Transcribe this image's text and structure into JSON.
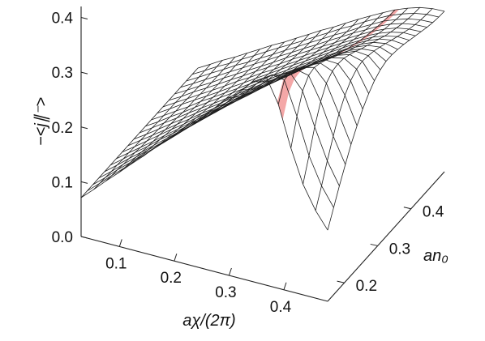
{
  "chart_data": {
    "type": "surface",
    "title": "",
    "axes": {
      "x": {
        "label": "aχ/(2π)",
        "range": [
          0.03,
          0.48
        ],
        "ticks": [
          0.1,
          0.2,
          0.3,
          0.4
        ],
        "tick_labels": [
          "0.1",
          "0.2",
          "0.3",
          "0.4"
        ]
      },
      "y": {
        "label": "an₀",
        "range": [
          0.15,
          0.5
        ],
        "ticks": [
          0.2,
          0.3,
          0.4
        ],
        "tick_labels": [
          "0.2",
          "0.3",
          "0.4"
        ]
      },
      "z": {
        "label": "−<j∥⁻>",
        "range": [
          0.0,
          0.42
        ],
        "ticks": [
          0.0,
          0.1,
          0.2,
          0.3,
          0.4
        ],
        "tick_labels": [
          "0.0",
          "0.1",
          "0.2",
          "0.3",
          "0.4"
        ]
      }
    },
    "surface": {
      "x_grid": [
        0.03,
        0.053,
        0.075,
        0.098,
        0.12,
        0.143,
        0.165,
        0.188,
        0.21,
        0.233,
        0.255,
        0.278,
        0.3,
        0.323,
        0.345,
        0.368,
        0.39,
        0.413,
        0.435,
        0.458,
        0.48
      ],
      "y_grid": [
        0.15,
        0.168,
        0.185,
        0.203,
        0.22,
        0.238,
        0.255,
        0.273,
        0.29,
        0.308,
        0.325,
        0.343,
        0.36,
        0.378,
        0.395,
        0.413,
        0.43,
        0.448,
        0.465,
        0.483,
        0.5
      ],
      "z_values": [
        [
          0.071,
          0.092,
          0.113,
          0.134,
          0.155,
          0.176,
          0.198,
          0.219,
          0.24,
          0.261,
          0.282,
          0.303,
          0.324,
          0.345,
          0.366,
          0.38,
          0.336,
          0.262,
          0.202,
          0.16,
          0.13
        ],
        [
          0.071,
          0.091,
          0.111,
          0.131,
          0.152,
          0.172,
          0.192,
          0.212,
          0.232,
          0.253,
          0.273,
          0.293,
          0.313,
          0.333,
          0.353,
          0.372,
          0.368,
          0.308,
          0.242,
          0.193,
          0.159
        ],
        [
          0.071,
          0.09,
          0.11,
          0.129,
          0.149,
          0.168,
          0.187,
          0.207,
          0.226,
          0.245,
          0.265,
          0.284,
          0.303,
          0.323,
          0.342,
          0.36,
          0.37,
          0.343,
          0.283,
          0.227,
          0.187
        ],
        [
          0.071,
          0.089,
          0.108,
          0.127,
          0.146,
          0.164,
          0.183,
          0.202,
          0.22,
          0.239,
          0.258,
          0.276,
          0.295,
          0.313,
          0.332,
          0.35,
          0.364,
          0.359,
          0.317,
          0.26,
          0.214
        ],
        [
          0.071,
          0.089,
          0.107,
          0.125,
          0.143,
          0.161,
          0.179,
          0.197,
          0.215,
          0.233,
          0.251,
          0.269,
          0.287,
          0.305,
          0.323,
          0.34,
          0.356,
          0.362,
          0.339,
          0.289,
          0.239
        ],
        [
          0.071,
          0.088,
          0.106,
          0.123,
          0.141,
          0.158,
          0.175,
          0.193,
          0.21,
          0.228,
          0.245,
          0.262,
          0.28,
          0.297,
          0.314,
          0.331,
          0.347,
          0.358,
          0.349,
          0.311,
          0.261
        ],
        [
          0.071,
          0.088,
          0.104,
          0.121,
          0.138,
          0.155,
          0.172,
          0.189,
          0.206,
          0.222,
          0.239,
          0.256,
          0.273,
          0.29,
          0.306,
          0.323,
          0.339,
          0.352,
          0.351,
          0.326,
          0.28
        ],
        [
          0.071,
          0.087,
          0.103,
          0.12,
          0.136,
          0.152,
          0.169,
          0.185,
          0.201,
          0.218,
          0.234,
          0.25,
          0.267,
          0.283,
          0.299,
          0.315,
          0.331,
          0.344,
          0.349,
          0.335,
          0.296
        ],
        [
          0.071,
          0.087,
          0.102,
          0.118,
          0.134,
          0.15,
          0.166,
          0.181,
          0.197,
          0.213,
          0.229,
          0.245,
          0.26,
          0.276,
          0.292,
          0.308,
          0.323,
          0.337,
          0.344,
          0.338,
          0.308
        ],
        [
          0.071,
          0.086,
          0.101,
          0.117,
          0.132,
          0.148,
          0.163,
          0.178,
          0.194,
          0.209,
          0.224,
          0.24,
          0.255,
          0.27,
          0.286,
          0.301,
          0.316,
          0.329,
          0.338,
          0.336,
          0.316
        ],
        [
          0.071,
          0.086,
          0.101,
          0.116,
          0.131,
          0.146,
          0.16,
          0.175,
          0.19,
          0.205,
          0.22,
          0.235,
          0.25,
          0.265,
          0.28,
          0.295,
          0.309,
          0.322,
          0.331,
          0.333,
          0.32
        ],
        [
          0.071,
          0.085,
          0.1,
          0.114,
          0.129,
          0.144,
          0.158,
          0.173,
          0.187,
          0.202,
          0.216,
          0.231,
          0.245,
          0.26,
          0.274,
          0.289,
          0.303,
          0.316,
          0.325,
          0.328,
          0.32
        ],
        [
          0.071,
          0.085,
          0.099,
          0.113,
          0.128,
          0.142,
          0.156,
          0.17,
          0.184,
          0.199,
          0.213,
          0.227,
          0.241,
          0.255,
          0.269,
          0.283,
          0.297,
          0.31,
          0.319,
          0.323,
          0.318
        ],
        [
          0.071,
          0.085,
          0.099,
          0.113,
          0.126,
          0.14,
          0.154,
          0.168,
          0.182,
          0.196,
          0.21,
          0.224,
          0.237,
          0.251,
          0.265,
          0.279,
          0.292,
          0.304,
          0.313,
          0.317,
          0.315
        ],
        [
          0.071,
          0.085,
          0.098,
          0.112,
          0.125,
          0.139,
          0.153,
          0.166,
          0.18,
          0.193,
          0.207,
          0.221,
          0.234,
          0.248,
          0.261,
          0.275,
          0.287,
          0.299,
          0.307,
          0.312,
          0.311
        ],
        [
          0.071,
          0.084,
          0.098,
          0.111,
          0.124,
          0.138,
          0.151,
          0.165,
          0.178,
          0.191,
          0.205,
          0.218,
          0.231,
          0.245,
          0.258,
          0.271,
          0.283,
          0.294,
          0.302,
          0.307,
          0.307
        ],
        [
          0.071,
          0.084,
          0.097,
          0.11,
          0.124,
          0.137,
          0.15,
          0.163,
          0.176,
          0.19,
          0.203,
          0.216,
          0.229,
          0.242,
          0.255,
          0.268,
          0.28,
          0.29,
          0.298,
          0.302,
          0.303
        ],
        [
          0.071,
          0.084,
          0.097,
          0.11,
          0.123,
          0.136,
          0.149,
          0.162,
          0.175,
          0.188,
          0.201,
          0.214,
          0.227,
          0.24,
          0.253,
          0.265,
          0.277,
          0.287,
          0.294,
          0.298,
          0.299
        ],
        [
          0.071,
          0.084,
          0.097,
          0.11,
          0.123,
          0.135,
          0.148,
          0.161,
          0.174,
          0.187,
          0.2,
          0.213,
          0.226,
          0.238,
          0.251,
          0.263,
          0.275,
          0.284,
          0.291,
          0.295,
          0.296
        ],
        [
          0.071,
          0.084,
          0.097,
          0.109,
          0.122,
          0.135,
          0.148,
          0.161,
          0.173,
          0.186,
          0.199,
          0.212,
          0.225,
          0.237,
          0.25,
          0.262,
          0.273,
          0.282,
          0.289,
          0.293,
          0.294
        ],
        [
          0.071,
          0.084,
          0.097,
          0.109,
          0.122,
          0.135,
          0.148,
          0.16,
          0.173,
          0.186,
          0.199,
          0.211,
          0.224,
          0.237,
          0.249,
          0.261,
          0.272,
          0.281,
          0.288,
          0.292,
          0.293
        ]
      ]
    },
    "highlight_band": {
      "x_range": [
        0.388,
        0.398
      ],
      "color": "#f08a8a"
    },
    "grid": false,
    "legend": "none"
  }
}
